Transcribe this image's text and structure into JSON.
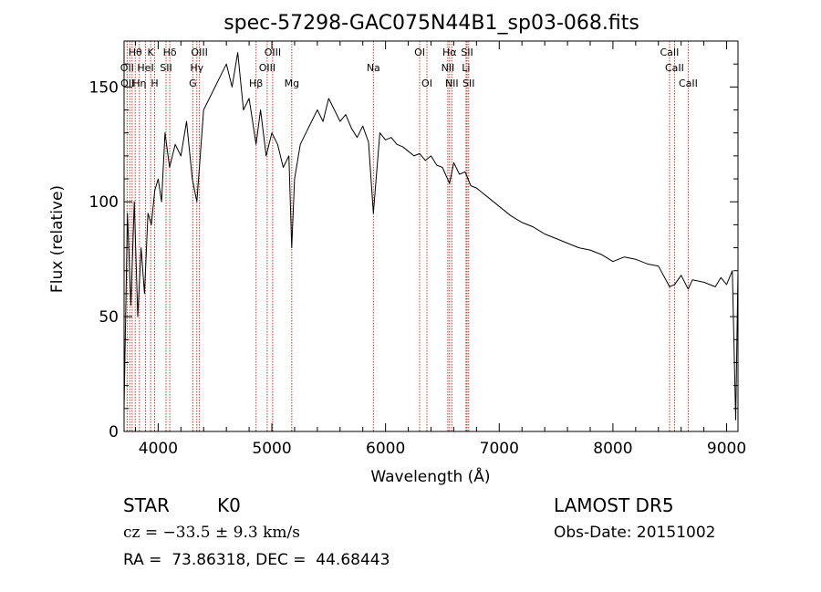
{
  "chart_data": {
    "type": "line",
    "title": "spec-57298-GAC075N44B1_sp03-068.fits",
    "xlabel": "Wavelength (Å)",
    "ylabel": "Flux (relative)",
    "xlim": [
      3700,
      9100
    ],
    "ylim": [
      0,
      170
    ],
    "xticks": [
      4000,
      5000,
      6000,
      7000,
      8000,
      9000
    ],
    "yticks": [
      0,
      50,
      100,
      150
    ],
    "grid": false,
    "series": [
      {
        "x": [
          3700,
          3730,
          3760,
          3790,
          3820,
          3850,
          3880,
          3910,
          3940,
          3970,
          4000,
          4030,
          4060,
          4100,
          4150,
          4200,
          4250,
          4300,
          4340,
          4400,
          4450,
          4500,
          4550,
          4600,
          4650,
          4700,
          4750,
          4800,
          4861,
          4900,
          4950,
          5000,
          5050,
          5100,
          5150,
          5175,
          5200,
          5250,
          5300,
          5350,
          5400,
          5450,
          5500,
          5550,
          5600,
          5650,
          5700,
          5750,
          5800,
          5850,
          5893,
          5950,
          6000,
          6050,
          6100,
          6150,
          6200,
          6250,
          6300,
          6350,
          6400,
          6450,
          6500,
          6563,
          6600,
          6650,
          6700,
          6750,
          6800,
          6850,
          6900,
          6950,
          7000,
          7100,
          7200,
          7300,
          7400,
          7500,
          7600,
          7700,
          7800,
          7900,
          8000,
          8100,
          8200,
          8300,
          8400,
          8498,
          8542,
          8600,
          8662,
          8700,
          8800,
          8900,
          8950,
          9000,
          9050,
          9080,
          9100
        ],
        "y": [
          10,
          95,
          55,
          100,
          50,
          80,
          60,
          95,
          90,
          105,
          110,
          100,
          130,
          115,
          125,
          120,
          135,
          110,
          100,
          140,
          145,
          150,
          155,
          160,
          150,
          165,
          140,
          145,
          125,
          140,
          120,
          130,
          125,
          115,
          120,
          80,
          110,
          125,
          130,
          135,
          140,
          135,
          145,
          140,
          135,
          138,
          132,
          128,
          133,
          126,
          95,
          130,
          127,
          128,
          125,
          124,
          122,
          120,
          121,
          118,
          120,
          116,
          115,
          108,
          117,
          112,
          113,
          107,
          106,
          104,
          102,
          100,
          98,
          94,
          91,
          89,
          86,
          84,
          82,
          80,
          79,
          77,
          74,
          76,
          75,
          73,
          72,
          63,
          64,
          68,
          62,
          66,
          65,
          63,
          67,
          64,
          70,
          5,
          70
        ]
      }
    ],
    "line_annotations": [
      {
        "label": "Hθ",
        "wavelength": 3798,
        "row": 1
      },
      {
        "label": "K",
        "wavelength": 3934,
        "row": 1
      },
      {
        "label": "Hδ",
        "wavelength": 4102,
        "row": 1
      },
      {
        "label": "OIII",
        "wavelength": 4363,
        "row": 1
      },
      {
        "label": "OIII",
        "wavelength": 5007,
        "row": 1
      },
      {
        "label": "OI",
        "wavelength": 6300,
        "row": 1
      },
      {
        "label": "Hα",
        "wavelength": 6563,
        "row": 1
      },
      {
        "label": "SII",
        "wavelength": 6717,
        "row": 1
      },
      {
        "label": "CaII",
        "wavelength": 8498,
        "row": 1
      },
      {
        "label": "OII",
        "wavelength": 3727,
        "row": 2
      },
      {
        "label": "HeI",
        "wavelength": 3889,
        "row": 2
      },
      {
        "label": "SII",
        "wavelength": 4069,
        "row": 2
      },
      {
        "label": "Hγ",
        "wavelength": 4340,
        "row": 2
      },
      {
        "label": "OIII",
        "wavelength": 4959,
        "row": 2
      },
      {
        "label": "Na",
        "wavelength": 5893,
        "row": 2
      },
      {
        "label": "NII",
        "wavelength": 6548,
        "row": 2
      },
      {
        "label": "Li",
        "wavelength": 6708,
        "row": 2
      },
      {
        "label": "CaII",
        "wavelength": 8542,
        "row": 2
      },
      {
        "label": "OII",
        "wavelength": 3730,
        "row": 3
      },
      {
        "label": "Hη",
        "wavelength": 3835,
        "row": 3
      },
      {
        "label": "H",
        "wavelength": 3969,
        "row": 3
      },
      {
        "label": "G",
        "wavelength": 4305,
        "row": 3
      },
      {
        "label": "Hβ",
        "wavelength": 4861,
        "row": 3
      },
      {
        "label": "Mg",
        "wavelength": 5175,
        "row": 3
      },
      {
        "label": "OI",
        "wavelength": 6364,
        "row": 3
      },
      {
        "label": "NII",
        "wavelength": 6583,
        "row": 3
      },
      {
        "label": "SII",
        "wavelength": 6731,
        "row": 3
      },
      {
        "label": "CaII",
        "wavelength": 8662,
        "row": 3
      }
    ],
    "marker_lines": [
      3727,
      3750,
      3771,
      3798,
      3835,
      3889,
      3934,
      3969,
      4069,
      4102,
      4305,
      4340,
      4363,
      4861,
      4959,
      5007,
      5175,
      5893,
      6300,
      6364,
      6548,
      6563,
      6583,
      6708,
      6717,
      6731,
      8498,
      8542,
      8662
    ]
  },
  "info": {
    "class": "STAR",
    "subclass": "K0",
    "cz": "cz = −33.5 ± 9.3 km/s",
    "coords": "RA =  73.86318, DEC =  44.68443",
    "survey": "LAMOST DR5",
    "obs_date": "Obs-Date: 20151002"
  },
  "colors": {
    "marker_line": "#c0392b",
    "spectrum": "#000000"
  }
}
